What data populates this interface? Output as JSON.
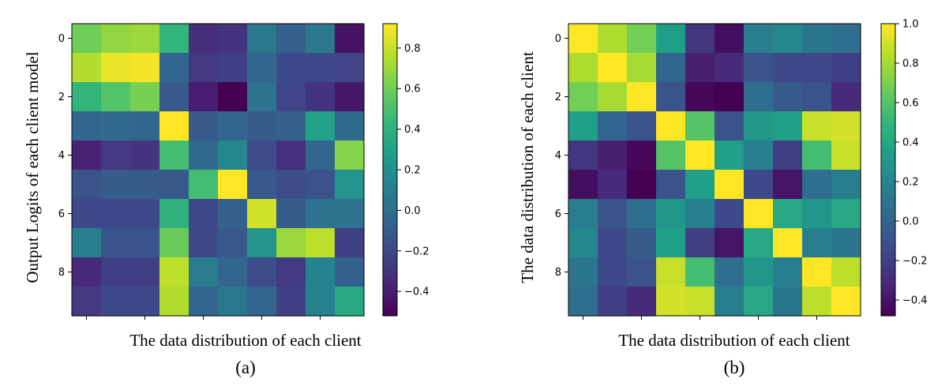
{
  "colormap": {
    "name": "viridis",
    "stops": [
      "#440154",
      "#482878",
      "#3e4989",
      "#31688e",
      "#26828e",
      "#1f9e89",
      "#35b779",
      "#6ece58",
      "#b5de2b",
      "#fde725"
    ]
  },
  "chart_data": [
    {
      "type": "heatmap",
      "caption": "(a)",
      "xlabel": "The data distribution of each client",
      "ylabel": "Output Logits of each client model",
      "y_ticks": [
        "0",
        "2",
        "4",
        "6",
        "8"
      ],
      "x_ticks": [
        "",
        "",
        "",
        "",
        ""
      ],
      "vmin": -0.52,
      "vmax": 0.92,
      "colorbar_ticks": [
        {
          "value": 0.8,
          "label": "0.8"
        },
        {
          "value": 0.6,
          "label": "0.6"
        },
        {
          "value": 0.4,
          "label": "0.4"
        },
        {
          "value": 0.2,
          "label": "0.2"
        },
        {
          "value": 0.0,
          "label": "0.0"
        },
        {
          "value": -0.2,
          "label": "−0.2"
        },
        {
          "value": -0.4,
          "label": "−0.4"
        }
      ],
      "matrix": [
        [
          0.6,
          0.68,
          0.7,
          0.42,
          -0.33,
          -0.3,
          0.05,
          -0.08,
          0.05,
          -0.45
        ],
        [
          0.75,
          0.88,
          0.9,
          -0.05,
          -0.28,
          -0.25,
          -0.05,
          -0.2,
          -0.2,
          -0.22
        ],
        [
          0.42,
          0.52,
          0.62,
          -0.12,
          -0.4,
          -0.52,
          0.02,
          -0.22,
          -0.3,
          -0.43
        ],
        [
          -0.05,
          -0.03,
          -0.05,
          0.92,
          -0.12,
          -0.05,
          -0.1,
          -0.08,
          0.3,
          -0.02
        ],
        [
          -0.38,
          -0.28,
          -0.3,
          0.48,
          -0.02,
          0.15,
          -0.18,
          -0.32,
          -0.05,
          0.65
        ],
        [
          -0.15,
          -0.1,
          -0.1,
          -0.12,
          0.48,
          0.92,
          -0.12,
          -0.18,
          -0.15,
          0.22
        ],
        [
          -0.2,
          -0.2,
          -0.2,
          0.4,
          -0.2,
          -0.08,
          0.82,
          -0.1,
          0.02,
          0.02
        ],
        [
          0.1,
          -0.15,
          -0.15,
          0.58,
          -0.2,
          -0.12,
          0.22,
          0.7,
          0.78,
          -0.25
        ],
        [
          -0.35,
          -0.25,
          -0.25,
          0.78,
          0.08,
          -0.05,
          -0.18,
          -0.28,
          0.12,
          -0.08
        ],
        [
          -0.28,
          -0.2,
          -0.2,
          0.75,
          -0.05,
          0.05,
          -0.05,
          -0.25,
          0.12,
          0.35
        ]
      ]
    },
    {
      "type": "heatmap",
      "caption": "(b)",
      "xlabel": "The data distribution of each client",
      "ylabel": "The data distribution of each client",
      "y_ticks": [
        "0",
        "2",
        "4",
        "6",
        "8"
      ],
      "x_ticks": [
        "",
        "",
        "",
        "",
        ""
      ],
      "vmin": -0.48,
      "vmax": 1.0,
      "colorbar_ticks": [
        {
          "value": 1.0,
          "label": "1.0"
        },
        {
          "value": 0.8,
          "label": "0.8"
        },
        {
          "value": 0.6,
          "label": "0.6"
        },
        {
          "value": 0.4,
          "label": "0.4"
        },
        {
          "value": 0.2,
          "label": "0.2"
        },
        {
          "value": 0.0,
          "label": "0.0"
        },
        {
          "value": -0.2,
          "label": "−0.2"
        },
        {
          "value": -0.4,
          "label": "−0.4"
        }
      ],
      "matrix": [
        [
          1.0,
          0.82,
          0.68,
          0.35,
          -0.25,
          -0.42,
          0.15,
          0.2,
          0.1,
          0.05
        ],
        [
          0.82,
          1.0,
          0.8,
          0.0,
          -0.35,
          -0.3,
          -0.1,
          -0.15,
          -0.15,
          -0.2
        ],
        [
          0.68,
          0.8,
          1.0,
          -0.1,
          -0.45,
          -0.48,
          0.05,
          -0.05,
          -0.1,
          -0.3
        ],
        [
          0.35,
          0.0,
          -0.1,
          1.0,
          0.6,
          -0.1,
          0.3,
          0.35,
          0.88,
          0.9
        ],
        [
          -0.25,
          -0.35,
          -0.45,
          0.6,
          1.0,
          0.35,
          0.15,
          -0.2,
          0.55,
          0.88
        ],
        [
          -0.42,
          -0.3,
          -0.48,
          -0.1,
          0.35,
          1.0,
          -0.15,
          -0.4,
          0.05,
          0.15
        ],
        [
          0.15,
          -0.1,
          0.05,
          0.3,
          0.15,
          -0.15,
          1.0,
          0.4,
          0.3,
          0.4
        ],
        [
          0.2,
          -0.15,
          -0.05,
          0.35,
          -0.2,
          -0.4,
          0.4,
          1.0,
          0.15,
          0.1
        ],
        [
          0.1,
          -0.15,
          -0.1,
          0.88,
          0.55,
          0.05,
          0.3,
          0.15,
          1.0,
          0.85
        ],
        [
          0.05,
          -0.2,
          -0.3,
          0.9,
          0.88,
          0.15,
          0.4,
          0.1,
          0.85,
          1.0
        ]
      ]
    }
  ]
}
